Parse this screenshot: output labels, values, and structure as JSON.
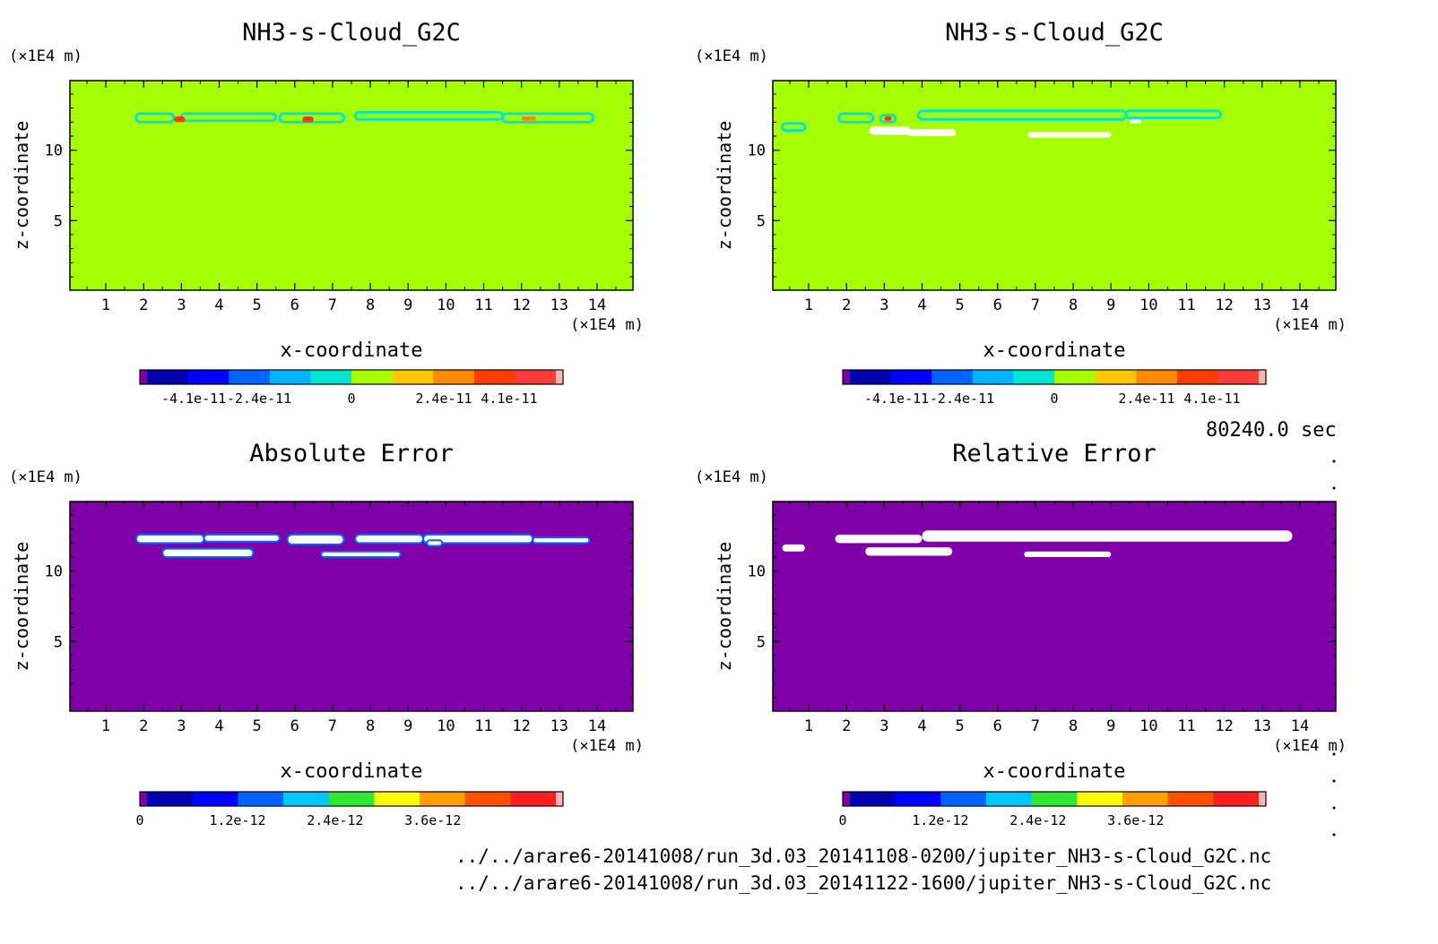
{
  "time_label": "80240.0 sec",
  "files": [
    "../../arare6-20141008/run_3d.03_20141108-0200/jupiter_NH3-s-Cloud_G2C.nc",
    "../../arare6-20141008/run_3d.03_20141122-1600/jupiter_NH3-s-Cloud_G2C.nc"
  ],
  "colors": {
    "field_background": "#a6ff00",
    "error_background": "#7f00a8",
    "no_data": "#ffffff"
  },
  "chart_data": [
    {
      "type": "heatmap",
      "title": "NH3-s-Cloud_G2C",
      "xlabel": "x-coordinate",
      "ylabel": "z-coordinate",
      "x_unit": "(×1E4 m)",
      "y_unit": "(×1E4 m)",
      "xlim": [
        0.05,
        14.95
      ],
      "ylim": [
        0.05,
        14.95
      ],
      "x_ticks": [
        "1",
        "2",
        "3",
        "4",
        "5",
        "6",
        "7",
        "8",
        "9",
        "10",
        "11",
        "12",
        "13",
        "14"
      ],
      "y_ticks": [
        "5",
        "10"
      ],
      "colorbar": {
        "colors": [
          "#7f00a8",
          "#0000b0",
          "#0000ff",
          "#0064ff",
          "#00b4ff",
          "#00e6d2",
          "#a6ff00",
          "#ffc800",
          "#ff8c00",
          "#ff3c00",
          "#ff3c3c",
          "#ffb4b4"
        ],
        "tick_labels": [
          "-4.1e-11",
          "-2.4e-11",
          "0",
          "2.4e-11",
          "4.1e-11"
        ],
        "tick_positions": [
          -4.1e-11,
          -2.4e-11,
          0,
          2.4e-11,
          4.1e-11
        ],
        "range": [
          -5.5e-11,
          5.5e-11
        ]
      }
    },
    {
      "type": "heatmap",
      "title": "NH3-s-Cloud_G2C",
      "xlabel": "x-coordinate",
      "ylabel": "z-coordinate",
      "x_unit": "(×1E4 m)",
      "y_unit": "(×1E4 m)",
      "xlim": [
        0.05,
        14.95
      ],
      "ylim": [
        0.05,
        14.95
      ],
      "x_ticks": [
        "1",
        "2",
        "3",
        "4",
        "5",
        "6",
        "7",
        "8",
        "9",
        "10",
        "11",
        "12",
        "13",
        "14"
      ],
      "y_ticks": [
        "5",
        "10"
      ],
      "colorbar": {
        "colors": [
          "#7f00a8",
          "#0000b0",
          "#0000ff",
          "#0064ff",
          "#00b4ff",
          "#00e6d2",
          "#a6ff00",
          "#ffc800",
          "#ff8c00",
          "#ff3c00",
          "#ff3c3c",
          "#ffb4b4"
        ],
        "tick_labels": [
          "-4.1e-11",
          "-2.4e-11",
          "0",
          "2.4e-11",
          "4.1e-11"
        ],
        "tick_positions": [
          -4.1e-11,
          -2.4e-11,
          0,
          2.4e-11,
          4.1e-11
        ],
        "range": [
          -5.5e-11,
          5.5e-11
        ]
      }
    },
    {
      "type": "heatmap",
      "title": "Absolute Error",
      "xlabel": "x-coordinate",
      "ylabel": "z-coordinate",
      "x_unit": "(×1E4 m)",
      "y_unit": "(×1E4 m)",
      "xlim": [
        0.05,
        14.95
      ],
      "ylim": [
        0.05,
        14.95
      ],
      "x_ticks": [
        "1",
        "2",
        "3",
        "4",
        "5",
        "6",
        "7",
        "8",
        "9",
        "10",
        "11",
        "12",
        "13",
        "14"
      ],
      "y_ticks": [
        "5",
        "10"
      ],
      "colorbar": {
        "colors": [
          "#7f00a8",
          "#0000b0",
          "#0000ff",
          "#0064ff",
          "#00c8ff",
          "#32e632",
          "#ffff00",
          "#ffa000",
          "#ff5000",
          "#ff1e1e",
          "#ffb4b4"
        ],
        "tick_labels": [
          "0",
          "1.2e-12",
          "2.4e-12",
          "3.6e-12"
        ],
        "tick_positions": [
          0,
          1.2e-12,
          2.4e-12,
          3.6e-12
        ],
        "range": [
          0,
          5.2e-12
        ]
      }
    },
    {
      "type": "heatmap",
      "title": "Relative Error",
      "xlabel": "x-coordinate",
      "ylabel": "z-coordinate",
      "x_unit": "(×1E4 m)",
      "y_unit": "(×1E4 m)",
      "xlim": [
        0.05,
        14.95
      ],
      "ylim": [
        0.05,
        14.95
      ],
      "x_ticks": [
        "1",
        "2",
        "3",
        "4",
        "5",
        "6",
        "7",
        "8",
        "9",
        "10",
        "11",
        "12",
        "13",
        "14"
      ],
      "y_ticks": [
        "5",
        "10"
      ],
      "colorbar": {
        "colors": [
          "#7f00a8",
          "#0000b0",
          "#0000ff",
          "#0064ff",
          "#00c8ff",
          "#32e632",
          "#ffff00",
          "#ffa000",
          "#ff5000",
          "#ff1e1e",
          "#ffb4b4"
        ],
        "tick_labels": [
          "0",
          "1.2e-12",
          "2.4e-12",
          "3.6e-12"
        ],
        "tick_positions": [
          0,
          1.2e-12,
          2.4e-12,
          3.6e-12
        ],
        "range": [
          0,
          5.2e-12
        ]
      }
    }
  ]
}
